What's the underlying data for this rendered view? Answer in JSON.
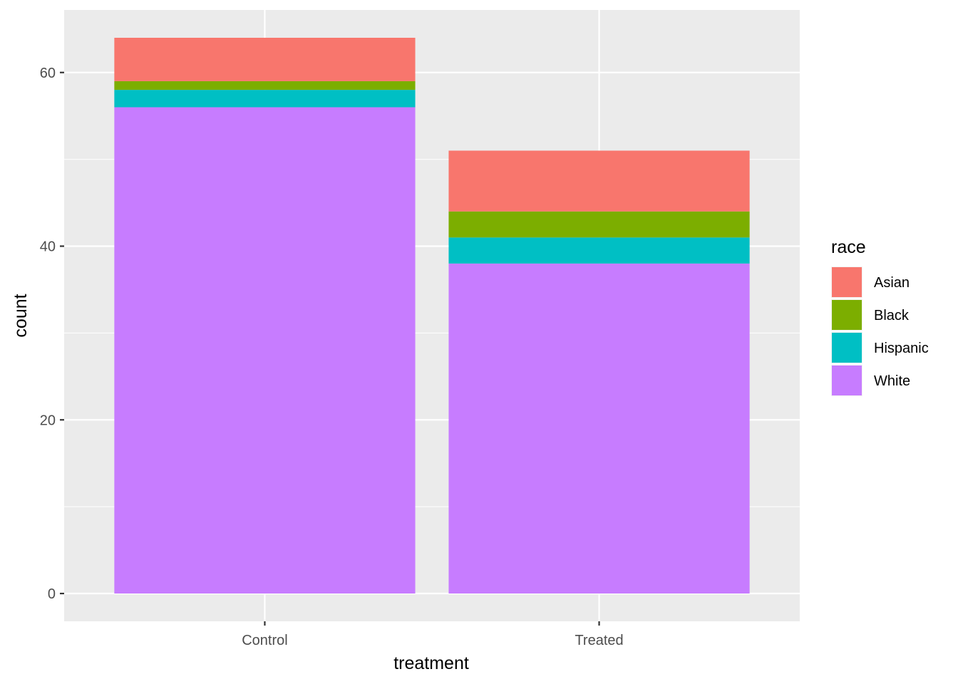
{
  "chart_data": {
    "type": "bar",
    "stacked": true,
    "categories": [
      "Control",
      "Treated"
    ],
    "series": [
      {
        "name": "White",
        "values": [
          56,
          38
        ],
        "color": "#C77CFF"
      },
      {
        "name": "Hispanic",
        "values": [
          2,
          3
        ],
        "color": "#00BFC4"
      },
      {
        "name": "Black",
        "values": [
          1,
          3
        ],
        "color": "#7CAE00"
      },
      {
        "name": "Asian",
        "values": [
          5,
          7
        ],
        "color": "#F8766D"
      }
    ],
    "legend_order": [
      "Asian",
      "Black",
      "Hispanic",
      "White"
    ],
    "xlabel": "treatment",
    "ylabel": "count",
    "legend_title": "race",
    "ylim": [
      -3.2,
      67.2
    ],
    "yticks": [
      0,
      20,
      40,
      60
    ],
    "yticks_minor": [
      10,
      30,
      50
    ],
    "grid": true,
    "legend_position": "right",
    "panel_background": "#EBEBEB"
  }
}
